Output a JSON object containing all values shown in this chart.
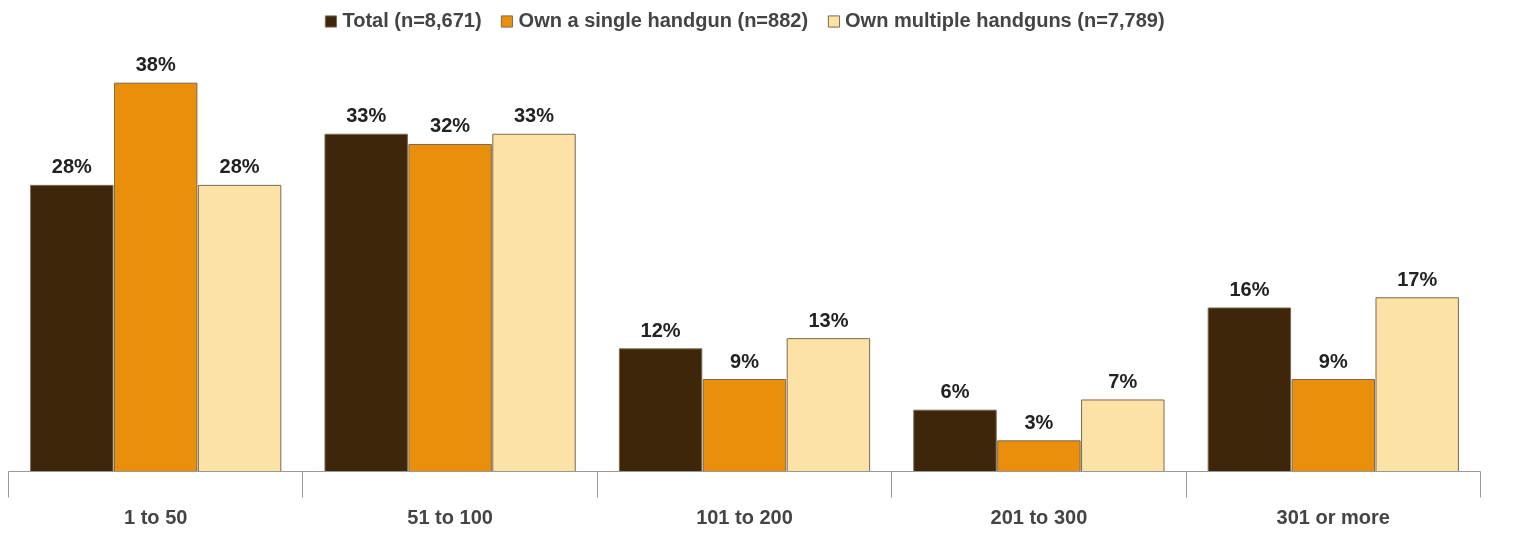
{
  "chart_data": {
    "type": "bar",
    "categories": [
      "1 to 50",
      "51 to 100",
      "101 to 200",
      "201 to 300",
      "301 or more"
    ],
    "series": [
      {
        "name": "Total (n=8,671)",
        "color": "#3d2609",
        "values": [
          28,
          33,
          12,
          6,
          16
        ],
        "value_labels": [
          "28%",
          "33%",
          "12%",
          "6%",
          "16%"
        ]
      },
      {
        "name": "Own a single handgun (n=882)",
        "color": "#e98f0c",
        "values": [
          38,
          32,
          9,
          3,
          9
        ],
        "value_labels": [
          "38%",
          "32%",
          "9%",
          "3%",
          "9%"
        ]
      },
      {
        "name": "Own multiple handguns (n=7,789)",
        "color": "#fde2a6",
        "values": [
          28,
          33,
          13,
          7,
          17
        ],
        "value_labels": [
          "28%",
          "33%",
          "13%",
          "7%",
          "17%"
        ]
      }
    ],
    "legend": "top"
  }
}
